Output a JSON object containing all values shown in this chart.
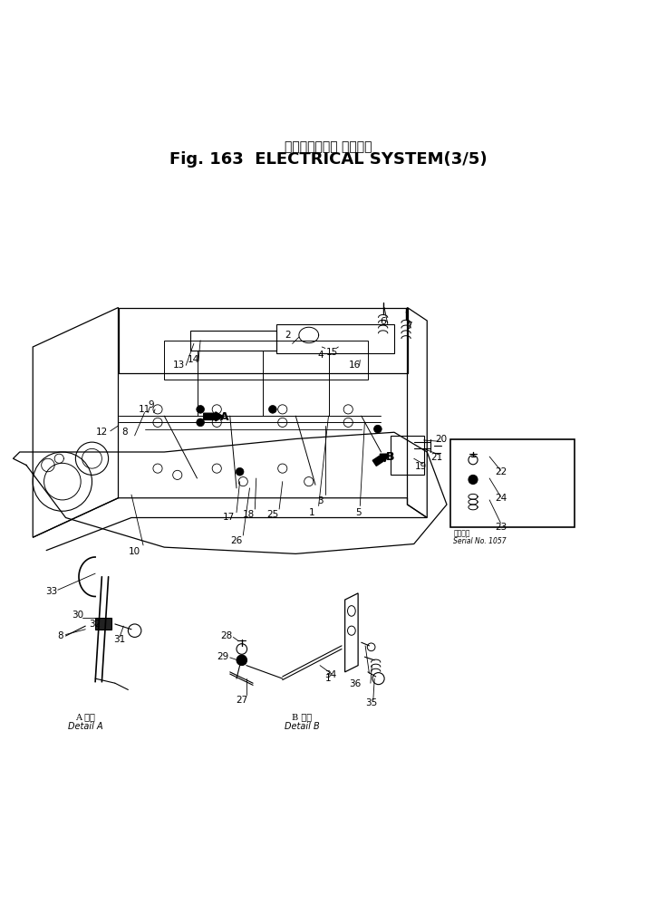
{
  "title_japanese": "エレクトリカル システム",
  "title_english": "Fig. 163  ELECTRICAL SYSTEM(3/5)",
  "bg_color": "#ffffff",
  "line_color": "#000000",
  "serial_note_japanese": "適用号機",
  "serial_note_english": "Serial No. 1057",
  "detail_a_japanese": "A 詳細",
  "detail_a_english": "Detail A",
  "detail_b_japanese": "B 詳細",
  "detail_b_english": "Detail B"
}
